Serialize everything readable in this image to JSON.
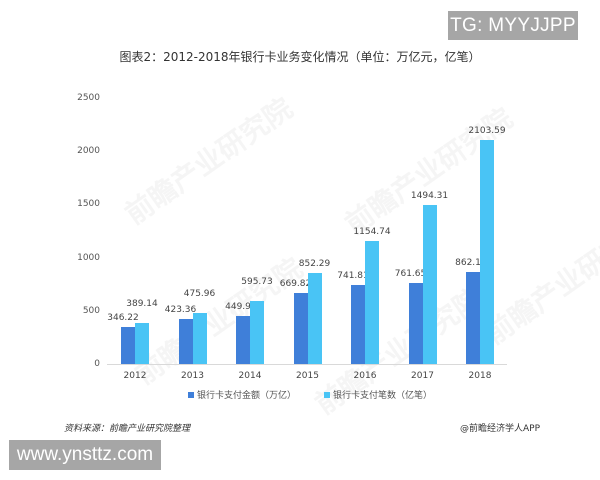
{
  "badges": {
    "top_right": "TG: MYYJJPP",
    "bottom_left": "www.ynsttz.com"
  },
  "footer": {
    "source": "资料来源：前瞻产业研究院整理",
    "credit": "@前瞻经济学人APP"
  },
  "watermark": "前瞻产业研究院",
  "colors": {
    "series_amount": "#3f7fd9",
    "series_count": "#49c4f5"
  },
  "chart_data": {
    "type": "bar",
    "title": "图表2：2012-2018年银行卡业务变化情况（单位：万亿元，亿笔）",
    "xlabel": "",
    "ylabel": "",
    "ylim": [
      0,
      2500
    ],
    "yticks": [
      "0",
      "500",
      "1000",
      "1500",
      "2000",
      "2500"
    ],
    "grid": false,
    "legend_position": "bottom",
    "categories": [
      "2012",
      "2013",
      "2014",
      "2015",
      "2016",
      "2017",
      "2018"
    ],
    "series": [
      {
        "name": "银行卡支付金额（万亿）",
        "values": [
          346.22,
          423.36,
          449.9,
          669.82,
          741.81,
          761.65,
          862.1
        ],
        "labels": [
          "346.22",
          "423.36",
          "449.9",
          "669.82",
          "741.81",
          "761.65",
          "862.1"
        ]
      },
      {
        "name": "银行卡支付笔数（亿笔）",
        "values": [
          389.14,
          475.96,
          595.73,
          852.29,
          1154.74,
          1494.31,
          2103.59
        ],
        "labels": [
          "389.14",
          "475.96",
          "595.73",
          "852.29",
          "1154.74",
          "1494.31",
          "2103.59"
        ]
      }
    ]
  }
}
